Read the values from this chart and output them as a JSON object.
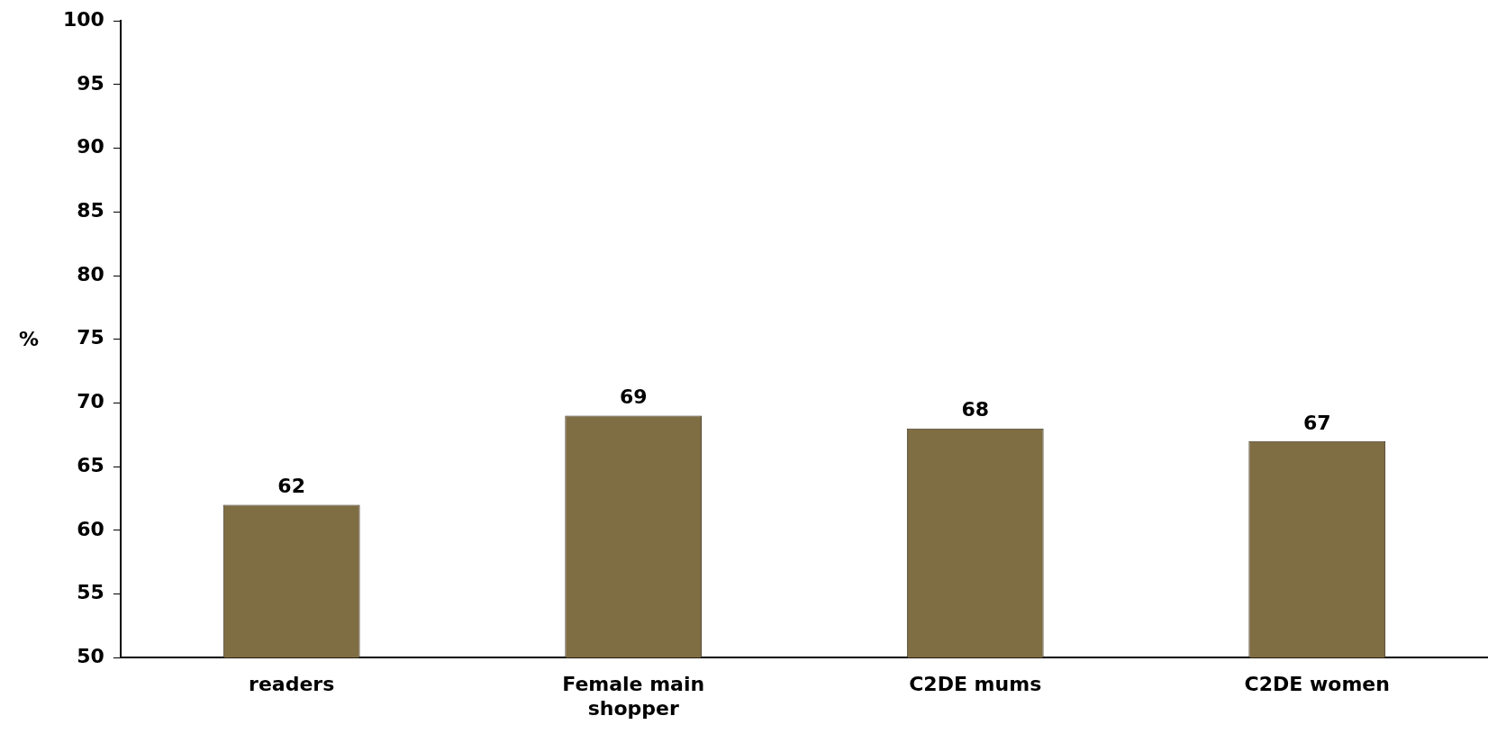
{
  "chart_data": {
    "type": "bar",
    "ylabel": "%",
    "categories": [
      "readers",
      "Female main shopper",
      "C2DE mums",
      "C2DE women"
    ],
    "values": [
      62,
      69,
      68,
      67
    ],
    "color": "#7f6d43",
    "ylim": [
      50,
      100
    ],
    "yticks": [
      50,
      55,
      60,
      65,
      70,
      75,
      80,
      85,
      90,
      95,
      100
    ],
    "grid": false,
    "data_labels": true,
    "legend": false
  }
}
